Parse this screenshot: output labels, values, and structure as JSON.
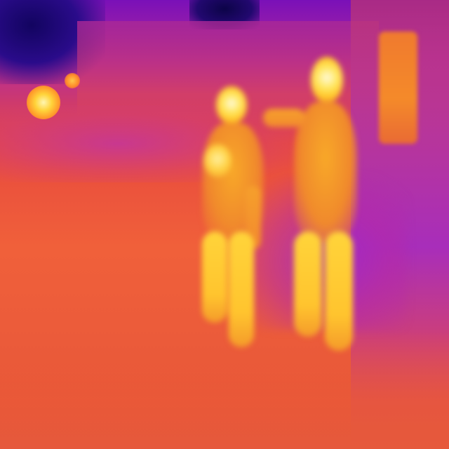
{
  "image": {
    "kind": "thermal-camera-frame",
    "palette": "iron",
    "subjects": [
      "person-left",
      "person-right",
      "child-held"
    ],
    "colors": {
      "cold": "#120460",
      "cool": "#7a10b8",
      "warm": "#e84a3e",
      "hot": "#ffc020",
      "hottest": "#fffae0"
    }
  }
}
